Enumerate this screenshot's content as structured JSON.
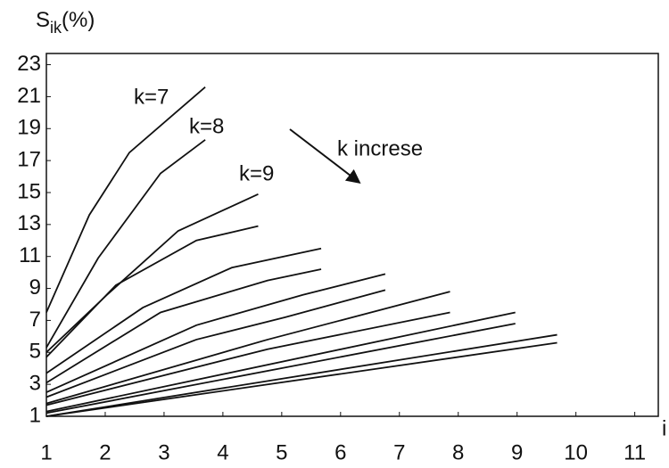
{
  "chart_data": {
    "type": "line",
    "ylabel": {
      "main": "S",
      "sub": "ik",
      "unit": "(%)"
    },
    "xlabel": "i",
    "xlim": [
      1,
      11.4
    ],
    "ylim": [
      1,
      23.7
    ],
    "xticks": [
      1,
      2,
      3,
      4,
      5,
      6,
      7,
      8,
      9,
      10,
      11
    ],
    "yticks": [
      1,
      3,
      5,
      7,
      9,
      11,
      13,
      15,
      17,
      19,
      21,
      23
    ],
    "grid": false,
    "color": "#111111",
    "series": [
      {
        "x": [
          1,
          1.73,
          2.41,
          3.7
        ],
        "values": [
          7.5,
          13.6,
          17.5,
          21.6
        ]
      },
      {
        "x": [
          1,
          1.88,
          2.94,
          3.7
        ],
        "values": [
          5.3,
          10.9,
          16.2,
          18.3
        ]
      },
      {
        "x": [
          1,
          2.03,
          3.24,
          4.6
        ],
        "values": [
          5.0,
          8.6,
          12.6,
          14.9
        ]
      },
      {
        "x": [
          1,
          2.18,
          3.55,
          4.6
        ],
        "values": [
          4.7,
          9.2,
          12.0,
          12.9
        ]
      },
      {
        "x": [
          1,
          2.64,
          4.15,
          5.67
        ],
        "values": [
          3.7,
          7.8,
          10.3,
          11.5
        ]
      },
      {
        "x": [
          1,
          2.94,
          4.76,
          5.67
        ],
        "values": [
          3.1,
          7.5,
          9.5,
          10.2
        ]
      },
      {
        "x": [
          1,
          3.55,
          5.36,
          6.76
        ],
        "values": [
          2.5,
          6.7,
          8.6,
          9.9
        ]
      },
      {
        "x": [
          1,
          3.55,
          5.06,
          6.76
        ],
        "values": [
          2.2,
          5.8,
          7.2,
          8.9
        ]
      },
      {
        "x": [
          1,
          4.76,
          7.86
        ],
        "values": [
          1.8,
          5.8,
          8.8
        ]
      },
      {
        "x": [
          1,
          4.76,
          7.86
        ],
        "values": [
          1.7,
          5.2,
          7.5
        ]
      },
      {
        "x": [
          1,
          8.97
        ],
        "values": [
          1.3,
          7.5
        ]
      },
      {
        "x": [
          1,
          8.97
        ],
        "values": [
          1.2,
          6.8
        ]
      },
      {
        "x": [
          1,
          9.68
        ],
        "values": [
          1,
          6.1
        ]
      },
      {
        "x": [
          1,
          9.68
        ],
        "values": [
          1,
          5.6
        ]
      }
    ],
    "annotations": [
      "k=7",
      "k=8",
      "k=9",
      "k increse"
    ]
  }
}
